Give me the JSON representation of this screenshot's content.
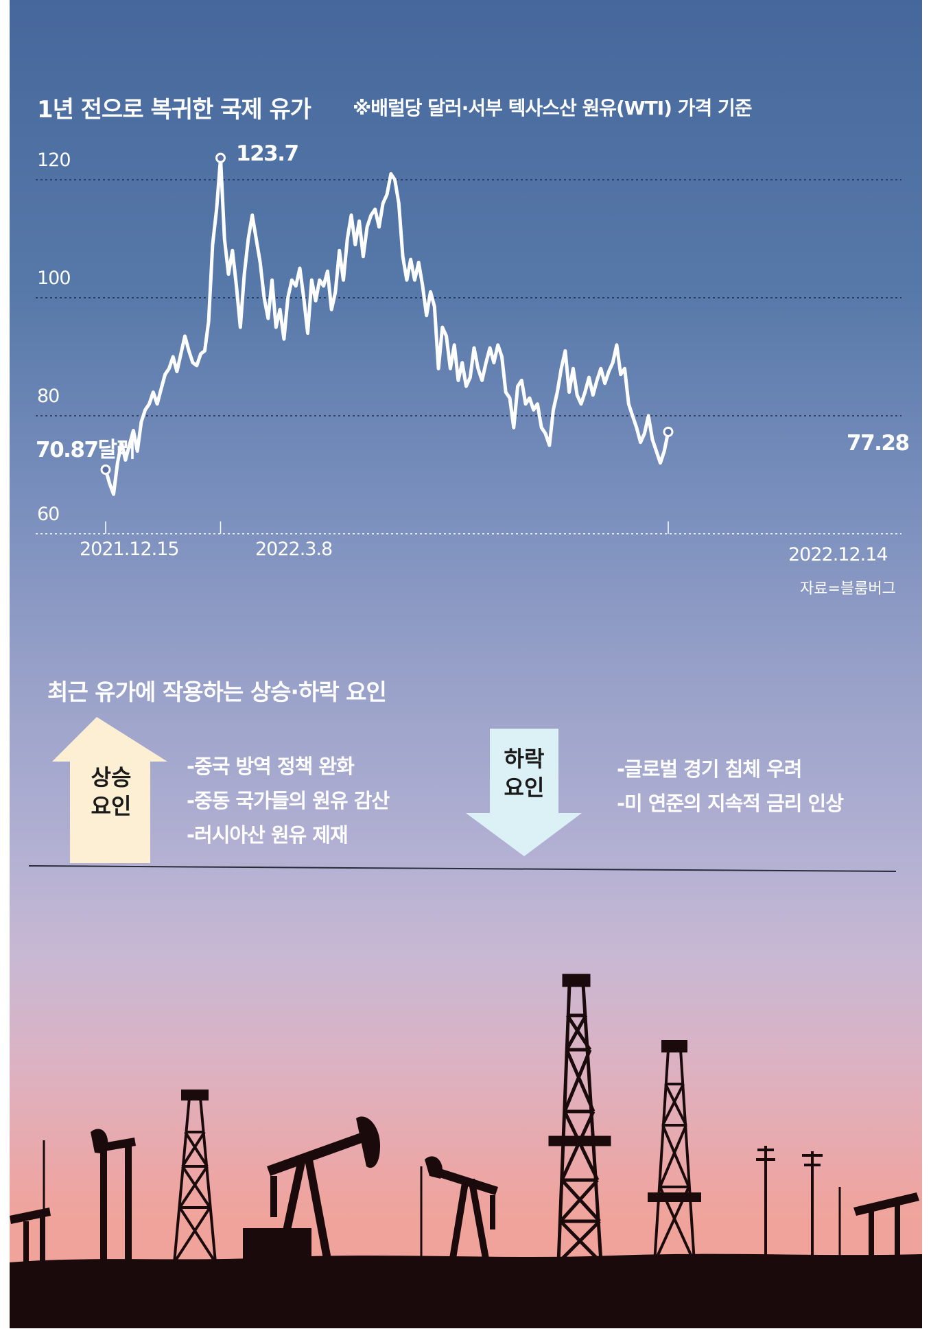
{
  "header": {
    "title": "1년 전으로 복귀한 국제 유가",
    "note": "※배럴당 달러·서부 텍사스산 원유(WTI) 가격 기준"
  },
  "chart_data": {
    "type": "line",
    "title": "1년 전으로 복귀한 국제 유가",
    "unit_note": "※배럴당 달러·서부 텍사스산 원유(WTI) 가격 기준",
    "ylim": [
      60,
      125
    ],
    "y_ticks": [
      "60",
      "80",
      "100",
      "120"
    ],
    "x_ticks": [
      "2021.12.15",
      "2022.3.8",
      "2022.12.14"
    ],
    "grid": true,
    "annotations": {
      "start": "70.87달러",
      "peak": "123.7",
      "end": "77.28"
    },
    "source": "자료=블룸버그",
    "series": [
      {
        "values": [
          70.87,
          68.5,
          66.7,
          72,
          75.5,
          72.5,
          75,
          77.5,
          74,
          79,
          81,
          82,
          84,
          82,
          84.5,
          87,
          88,
          90,
          87.5,
          90.5,
          93.5,
          91,
          89,
          88.5,
          90.5,
          91,
          96,
          109,
          115,
          123.7,
          110,
          104,
          108,
          102,
          95,
          104,
          110,
          114,
          110,
          106,
          100,
          96.5,
          103,
          95,
          98,
          93,
          100,
          103,
          102,
          105,
          100,
          94,
          103,
          99.5,
          103,
          102,
          104.5,
          98,
          101,
          108,
          103,
          110,
          114,
          109,
          113,
          107,
          112,
          114,
          115,
          112,
          116,
          117.5,
          121,
          120,
          116,
          107,
          103,
          106.5,
          103,
          106,
          102,
          97,
          101,
          98.5,
          88,
          95,
          93.5,
          88,
          92,
          86,
          89,
          85,
          86.5,
          91.5,
          88,
          86,
          89,
          91.5,
          89,
          92,
          90,
          84,
          83,
          78,
          85,
          86,
          82,
          83,
          81,
          82,
          78,
          77,
          75,
          81,
          84,
          88,
          91,
          84,
          88,
          83.5,
          82,
          84,
          86.5,
          83.5,
          86,
          88,
          85.5,
          87.5,
          89,
          92,
          87,
          88,
          82,
          80,
          78,
          75.5,
          77,
          80,
          76,
          74,
          72,
          74,
          77.28
        ]
      }
    ]
  },
  "factors": {
    "heading": "최근 유가에 작용하는 상승·하락 요인",
    "up": {
      "label_line1": "상승",
      "label_line2": "요인",
      "color": "#fcefd3",
      "items": [
        "-중국 방역 정책 완화",
        "-중동 국가들의 원유 감산",
        "-러시아산 원유 제재"
      ]
    },
    "down": {
      "label_line1": "하락",
      "label_line2": "요인",
      "color": "#dcf1f6",
      "items": [
        "-글로벌 경기 침체 우려",
        "-미 연준의 지속적 금리 인상"
      ]
    }
  },
  "colors": {
    "sky_top": "#46679b",
    "sky_bottom": "#f0a39a",
    "line": "#ffffff",
    "silhouette": "#1a0a0c"
  }
}
